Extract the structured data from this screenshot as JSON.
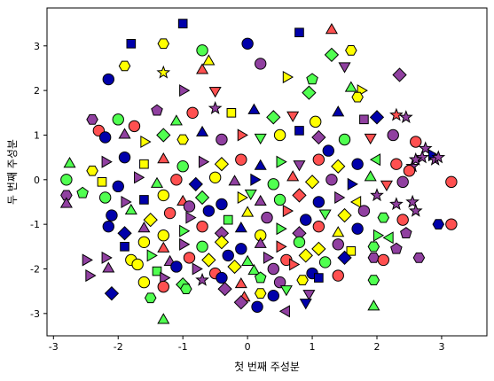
{
  "chart_data": {
    "type": "scatter",
    "title": "",
    "xlabel": "첫 번째 주성분",
    "ylabel": "두 번째 주성분",
    "xlim": [
      -3.1,
      3.7
    ],
    "ylim": [
      -3.5,
      3.85
    ],
    "xticks": [
      -3,
      -2,
      -1,
      0,
      1,
      2,
      3
    ],
    "yticks": [
      -3,
      -2,
      -1,
      0,
      1,
      2,
      3
    ],
    "xtick_labels": [
      "-3",
      "-2",
      "-1",
      "0",
      "1",
      "2",
      "3"
    ],
    "ytick_labels": [
      "-3",
      "-2",
      "-1",
      "0",
      "1",
      "2",
      "3"
    ],
    "grid": false,
    "legend": "none",
    "colors": [
      "#0000aa",
      "#ff5050",
      "#50ff50",
      "#ffff00",
      "#9040a0"
    ],
    "markers": [
      "circle",
      "triangle-up",
      "triangle-down",
      "triangle-left",
      "triangle-right",
      "square",
      "diamond",
      "pentagon",
      "hexagon",
      "star"
    ],
    "marker_edge_color": "#000000",
    "points": [
      [
        -1.0,
        3.5,
        5,
        0
      ],
      [
        0.0,
        3.05,
        0,
        0
      ],
      [
        -1.3,
        3.05,
        8,
        3
      ],
      [
        0.8,
        3.3,
        5,
        0
      ],
      [
        1.3,
        3.35,
        1,
        1
      ],
      [
        1.6,
        2.9,
        8,
        3
      ],
      [
        -1.8,
        3.05,
        5,
        0
      ],
      [
        -0.7,
        2.9,
        0,
        2
      ],
      [
        -0.6,
        2.65,
        1,
        3
      ],
      [
        -0.7,
        2.45,
        1,
        1
      ],
      [
        -1.3,
        2.4,
        9,
        3
      ],
      [
        -1.9,
        2.55,
        8,
        3
      ],
      [
        0.2,
        2.6,
        0,
        4
      ],
      [
        1.3,
        2.8,
        6,
        2
      ],
      [
        1.5,
        2.55,
        2,
        4
      ],
      [
        2.35,
        2.35,
        6,
        4
      ],
      [
        -2.15,
        2.25,
        0,
        0
      ],
      [
        1.0,
        2.25,
        7,
        2
      ],
      [
        0.6,
        2.3,
        4,
        3
      ],
      [
        1.6,
        2.05,
        1,
        2
      ],
      [
        -1.0,
        2.0,
        4,
        4
      ],
      [
        -0.5,
        2.0,
        2,
        1
      ],
      [
        0.95,
        1.95,
        6,
        2
      ],
      [
        1.75,
        2.0,
        4,
        3
      ],
      [
        1.7,
        1.85,
        8,
        3
      ],
      [
        -2.4,
        1.35,
        8,
        4
      ],
      [
        -2.0,
        1.35,
        0,
        2
      ],
      [
        -1.75,
        1.2,
        0,
        1
      ],
      [
        -1.4,
        1.55,
        7,
        4
      ],
      [
        -1.1,
        1.3,
        1,
        2
      ],
      [
        -0.85,
        1.5,
        0,
        1
      ],
      [
        -0.5,
        1.6,
        9,
        4
      ],
      [
        -0.25,
        1.5,
        5,
        3
      ],
      [
        0.1,
        1.55,
        1,
        0
      ],
      [
        0.4,
        1.4,
        6,
        2
      ],
      [
        0.7,
        1.45,
        2,
        1
      ],
      [
        1.05,
        1.3,
        0,
        3
      ],
      [
        1.4,
        1.5,
        1,
        0
      ],
      [
        1.8,
        1.35,
        5,
        4
      ],
      [
        2.0,
        1.4,
        6,
        0
      ],
      [
        2.3,
        1.45,
        9,
        1
      ],
      [
        2.45,
        1.4,
        9,
        4
      ],
      [
        -2.3,
        1.1,
        0,
        1
      ],
      [
        -2.2,
        0.95,
        0,
        0
      ],
      [
        -1.9,
        1.0,
        1,
        4
      ],
      [
        -1.6,
        0.85,
        4,
        3
      ],
      [
        -1.3,
        1.0,
        6,
        2
      ],
      [
        -1.0,
        0.9,
        8,
        3
      ],
      [
        -0.7,
        1.05,
        1,
        0
      ],
      [
        -0.4,
        0.9,
        0,
        4
      ],
      [
        -0.1,
        1.0,
        4,
        1
      ],
      [
        0.2,
        0.95,
        2,
        2
      ],
      [
        0.5,
        1.0,
        0,
        3
      ],
      [
        0.8,
        1.1,
        5,
        0
      ],
      [
        1.1,
        0.95,
        6,
        4
      ],
      [
        1.5,
        0.9,
        0,
        2
      ],
      [
        1.9,
        0.95,
        2,
        1
      ],
      [
        2.25,
        1.0,
        0,
        4
      ],
      [
        2.6,
        0.85,
        0,
        1
      ],
      [
        2.75,
        0.7,
        9,
        4
      ],
      [
        2.85,
        0.55,
        4,
        0
      ],
      [
        -2.75,
        0.35,
        1,
        2
      ],
      [
        -2.4,
        0.2,
        8,
        3
      ],
      [
        -2.2,
        0.4,
        4,
        4
      ],
      [
        -1.9,
        0.5,
        0,
        0
      ],
      [
        -1.6,
        0.35,
        5,
        3
      ],
      [
        -1.3,
        0.45,
        1,
        1
      ],
      [
        -1.0,
        0.3,
        0,
        2
      ],
      [
        -0.7,
        0.4,
        4,
        4
      ],
      [
        -0.4,
        0.35,
        6,
        3
      ],
      [
        -0.1,
        0.45,
        0,
        1
      ],
      [
        0.2,
        0.3,
        1,
        0
      ],
      [
        0.5,
        0.4,
        4,
        2
      ],
      [
        0.8,
        0.35,
        2,
        4
      ],
      [
        1.1,
        0.45,
        0,
        1
      ],
      [
        1.4,
        0.3,
        6,
        3
      ],
      [
        1.7,
        0.35,
        0,
        0
      ],
      [
        2.0,
        0.45,
        3,
        2
      ],
      [
        2.3,
        0.35,
        0,
        1
      ],
      [
        2.55,
        0.3,
        9,
        4
      ],
      [
        2.7,
        0.5,
        9,
        4
      ],
      [
        2.6,
        0.45,
        9,
        4
      ],
      [
        2.9,
        0.45,
        9,
        4
      ],
      [
        2.95,
        0.5,
        9,
        4
      ],
      [
        -2.8,
        0.0,
        0,
        2
      ],
      [
        -2.55,
        -0.3,
        7,
        2
      ],
      [
        -2.25,
        -0.05,
        5,
        3
      ],
      [
        -2.0,
        -0.15,
        0,
        0
      ],
      [
        -1.7,
        0.05,
        4,
        4
      ],
      [
        -1.4,
        -0.1,
        1,
        2
      ],
      [
        -1.1,
        0.0,
        0,
        1
      ],
      [
        -0.8,
        -0.1,
        6,
        0
      ],
      [
        -0.5,
        0.05,
        0,
        3
      ],
      [
        -0.2,
        -0.05,
        1,
        4
      ],
      [
        0.1,
        0.0,
        4,
        0
      ],
      [
        0.4,
        -0.1,
        0,
        2
      ],
      [
        0.7,
        0.05,
        1,
        1
      ],
      [
        1.0,
        -0.05,
        6,
        3
      ],
      [
        1.3,
        0.0,
        0,
        4
      ],
      [
        1.6,
        -0.1,
        4,
        0
      ],
      [
        1.9,
        0.05,
        1,
        2
      ],
      [
        2.15,
        -0.1,
        2,
        1
      ],
      [
        2.4,
        -0.05,
        0,
        4
      ],
      [
        2.5,
        0.2,
        0,
        1
      ],
      [
        3.15,
        -0.05,
        0,
        1
      ],
      [
        -2.8,
        -0.35,
        8,
        4
      ],
      [
        -2.8,
        -0.55,
        1,
        4
      ],
      [
        -2.2,
        -0.4,
        0,
        2
      ],
      [
        -1.9,
        -0.5,
        4,
        4
      ],
      [
        -1.6,
        -0.45,
        5,
        0
      ],
      [
        -1.3,
        -0.35,
        0,
        3
      ],
      [
        -1.0,
        -0.5,
        1,
        1
      ],
      [
        -0.7,
        -0.4,
        6,
        2
      ],
      [
        -0.4,
        -0.55,
        0,
        0
      ],
      [
        -0.1,
        -0.4,
        4,
        3
      ],
      [
        0.2,
        -0.5,
        1,
        4
      ],
      [
        0.5,
        -0.45,
        0,
        2
      ],
      [
        0.8,
        -0.35,
        6,
        1
      ],
      [
        1.1,
        -0.5,
        0,
        0
      ],
      [
        1.4,
        -0.4,
        4,
        4
      ],
      [
        1.7,
        -0.5,
        3,
        3
      ],
      [
        2.0,
        -0.35,
        9,
        4
      ],
      [
        2.3,
        -0.55,
        9,
        4
      ],
      [
        2.55,
        -0.5,
        9,
        4
      ],
      [
        2.6,
        -0.7,
        9,
        4
      ],
      [
        -2.1,
        -0.8,
        0,
        0
      ],
      [
        -1.8,
        -0.7,
        1,
        2
      ],
      [
        -1.5,
        -0.9,
        6,
        3
      ],
      [
        -1.2,
        -0.75,
        0,
        1
      ],
      [
        -0.9,
        -0.85,
        4,
        4
      ],
      [
        -0.6,
        -0.7,
        0,
        0
      ],
      [
        -0.3,
        -0.9,
        5,
        2
      ],
      [
        0.0,
        -0.75,
        1,
        3
      ],
      [
        0.3,
        -0.85,
        0,
        4
      ],
      [
        0.6,
        -0.7,
        4,
        1
      ],
      [
        0.9,
        -0.9,
        0,
        0
      ],
      [
        1.2,
        -0.75,
        2,
        2
      ],
      [
        1.5,
        -0.8,
        6,
        3
      ],
      [
        1.8,
        -0.7,
        0,
        4
      ],
      [
        2.1,
        -0.85,
        8,
        2
      ],
      [
        2.4,
        -0.9,
        0,
        1
      ],
      [
        2.95,
        -1.0,
        8,
        0
      ],
      [
        3.15,
        -1.0,
        0,
        1
      ],
      [
        -2.15,
        -1.05,
        0,
        0
      ],
      [
        -1.9,
        -1.2,
        6,
        0
      ],
      [
        -1.6,
        -1.1,
        1,
        4
      ],
      [
        -1.3,
        -1.25,
        0,
        3
      ],
      [
        -1.0,
        -1.15,
        4,
        2
      ],
      [
        -0.7,
        -1.05,
        0,
        1
      ],
      [
        -0.4,
        -1.2,
        6,
        4
      ],
      [
        -0.1,
        -1.1,
        1,
        0
      ],
      [
        0.2,
        -1.25,
        0,
        3
      ],
      [
        0.5,
        -1.1,
        4,
        2
      ],
      [
        0.8,
        -1.2,
        6,
        4
      ],
      [
        1.1,
        -1.05,
        0,
        1
      ],
      [
        1.4,
        -1.2,
        1,
        3
      ],
      [
        1.7,
        -1.1,
        0,
        0
      ],
      [
        2.0,
        -1.25,
        4,
        2
      ],
      [
        2.2,
        -1.3,
        3,
        2
      ],
      [
        2.45,
        -1.2,
        7,
        4
      ],
      [
        -1.9,
        -1.5,
        5,
        0
      ],
      [
        -1.6,
        -1.4,
        0,
        3
      ],
      [
        -1.3,
        -1.55,
        1,
        1
      ],
      [
        -1.0,
        -1.45,
        4,
        4
      ],
      [
        -0.7,
        -1.5,
        0,
        2
      ],
      [
        -0.4,
        -1.4,
        6,
        3
      ],
      [
        -0.1,
        -1.55,
        0,
        0
      ],
      [
        0.2,
        -1.45,
        1,
        4
      ],
      [
        0.5,
        -1.5,
        4,
        1
      ],
      [
        0.8,
        -1.4,
        0,
        2
      ],
      [
        1.1,
        -1.55,
        6,
        3
      ],
      [
        1.4,
        -1.45,
        0,
        4
      ],
      [
        1.6,
        -1.6,
        5,
        3
      ],
      [
        1.95,
        -1.5,
        8,
        2
      ],
      [
        2.3,
        -1.55,
        7,
        4
      ],
      [
        -2.2,
        -1.75,
        4,
        4
      ],
      [
        -1.8,
        -1.8,
        0,
        3
      ],
      [
        -1.5,
        -1.7,
        4,
        2
      ],
      [
        -1.2,
        -1.85,
        1,
        4
      ],
      [
        -0.9,
        -1.75,
        0,
        1
      ],
      [
        -0.6,
        -1.8,
        6,
        3
      ],
      [
        -0.3,
        -1.7,
        0,
        0
      ],
      [
        0.0,
        -1.85,
        1,
        2
      ],
      [
        0.3,
        -1.75,
        4,
        4
      ],
      [
        0.6,
        -1.8,
        0,
        1
      ],
      [
        0.9,
        -1.7,
        6,
        3
      ],
      [
        1.2,
        -1.85,
        0,
        2
      ],
      [
        1.5,
        -1.75,
        6,
        0
      ],
      [
        1.95,
        -1.75,
        8,
        4
      ],
      [
        2.1,
        -1.8,
        0,
        1
      ],
      [
        2.65,
        -1.75,
        8,
        4
      ],
      [
        -2.5,
        -1.8,
        4,
        4
      ],
      [
        -2.15,
        -2.0,
        1,
        4
      ],
      [
        -1.7,
        -1.9,
        0,
        3
      ],
      [
        -1.4,
        -2.05,
        5,
        2
      ],
      [
        -1.1,
        -1.95,
        0,
        0
      ],
      [
        -0.8,
        -2.0,
        4,
        4
      ],
      [
        -0.5,
        -2.1,
        0,
        1
      ],
      [
        -0.2,
        -1.95,
        6,
        3
      ],
      [
        0.1,
        -2.05,
        1,
        2
      ],
      [
        0.4,
        -2.0,
        0,
        4
      ],
      [
        0.7,
        -1.9,
        4,
        1
      ],
      [
        1.0,
        -2.1,
        0,
        0
      ],
      [
        1.4,
        -2.15,
        0,
        1
      ],
      [
        -1.6,
        -2.3,
        0,
        3
      ],
      [
        -1.3,
        -2.2,
        4,
        4
      ],
      [
        -1.0,
        -2.35,
        6,
        2
      ],
      [
        -0.7,
        -2.25,
        9,
        4
      ],
      [
        -0.4,
        -2.2,
        0,
        0
      ],
      [
        -0.1,
        -2.35,
        1,
        1
      ],
      [
        0.2,
        -2.2,
        7,
        2
      ],
      [
        0.5,
        -2.3,
        0,
        4
      ],
      [
        0.85,
        -2.25,
        8,
        3
      ],
      [
        1.1,
        -2.2,
        5,
        0
      ],
      [
        -2.45,
        -2.15,
        4,
        4
      ],
      [
        -1.3,
        -2.4,
        0,
        1
      ],
      [
        -0.95,
        -2.45,
        8,
        2
      ],
      [
        -0.35,
        -2.45,
        6,
        4
      ],
      [
        0.2,
        -2.55,
        8,
        3
      ],
      [
        0.6,
        -2.45,
        2,
        2
      ],
      [
        0.95,
        -2.55,
        2,
        4
      ],
      [
        -2.1,
        -2.55,
        6,
        0
      ],
      [
        -0.05,
        -2.65,
        1,
        1
      ],
      [
        0.4,
        -2.6,
        0,
        0
      ],
      [
        1.95,
        -2.25,
        8,
        2
      ],
      [
        1.95,
        -2.85,
        1,
        2
      ],
      [
        -1.5,
        -2.65,
        8,
        2
      ],
      [
        -0.1,
        -2.75,
        6,
        4
      ],
      [
        0.15,
        -2.85,
        0,
        0
      ],
      [
        0.6,
        -2.95,
        3,
        4
      ],
      [
        0.9,
        -2.75,
        2,
        0
      ],
      [
        -1.3,
        -3.15,
        1,
        2
      ],
      [
        -0.9,
        -0.6,
        0,
        4
      ],
      [
        0.05,
        -0.3,
        2,
        2
      ],
      [
        1.25,
        0.65,
        0,
        0
      ]
    ]
  }
}
